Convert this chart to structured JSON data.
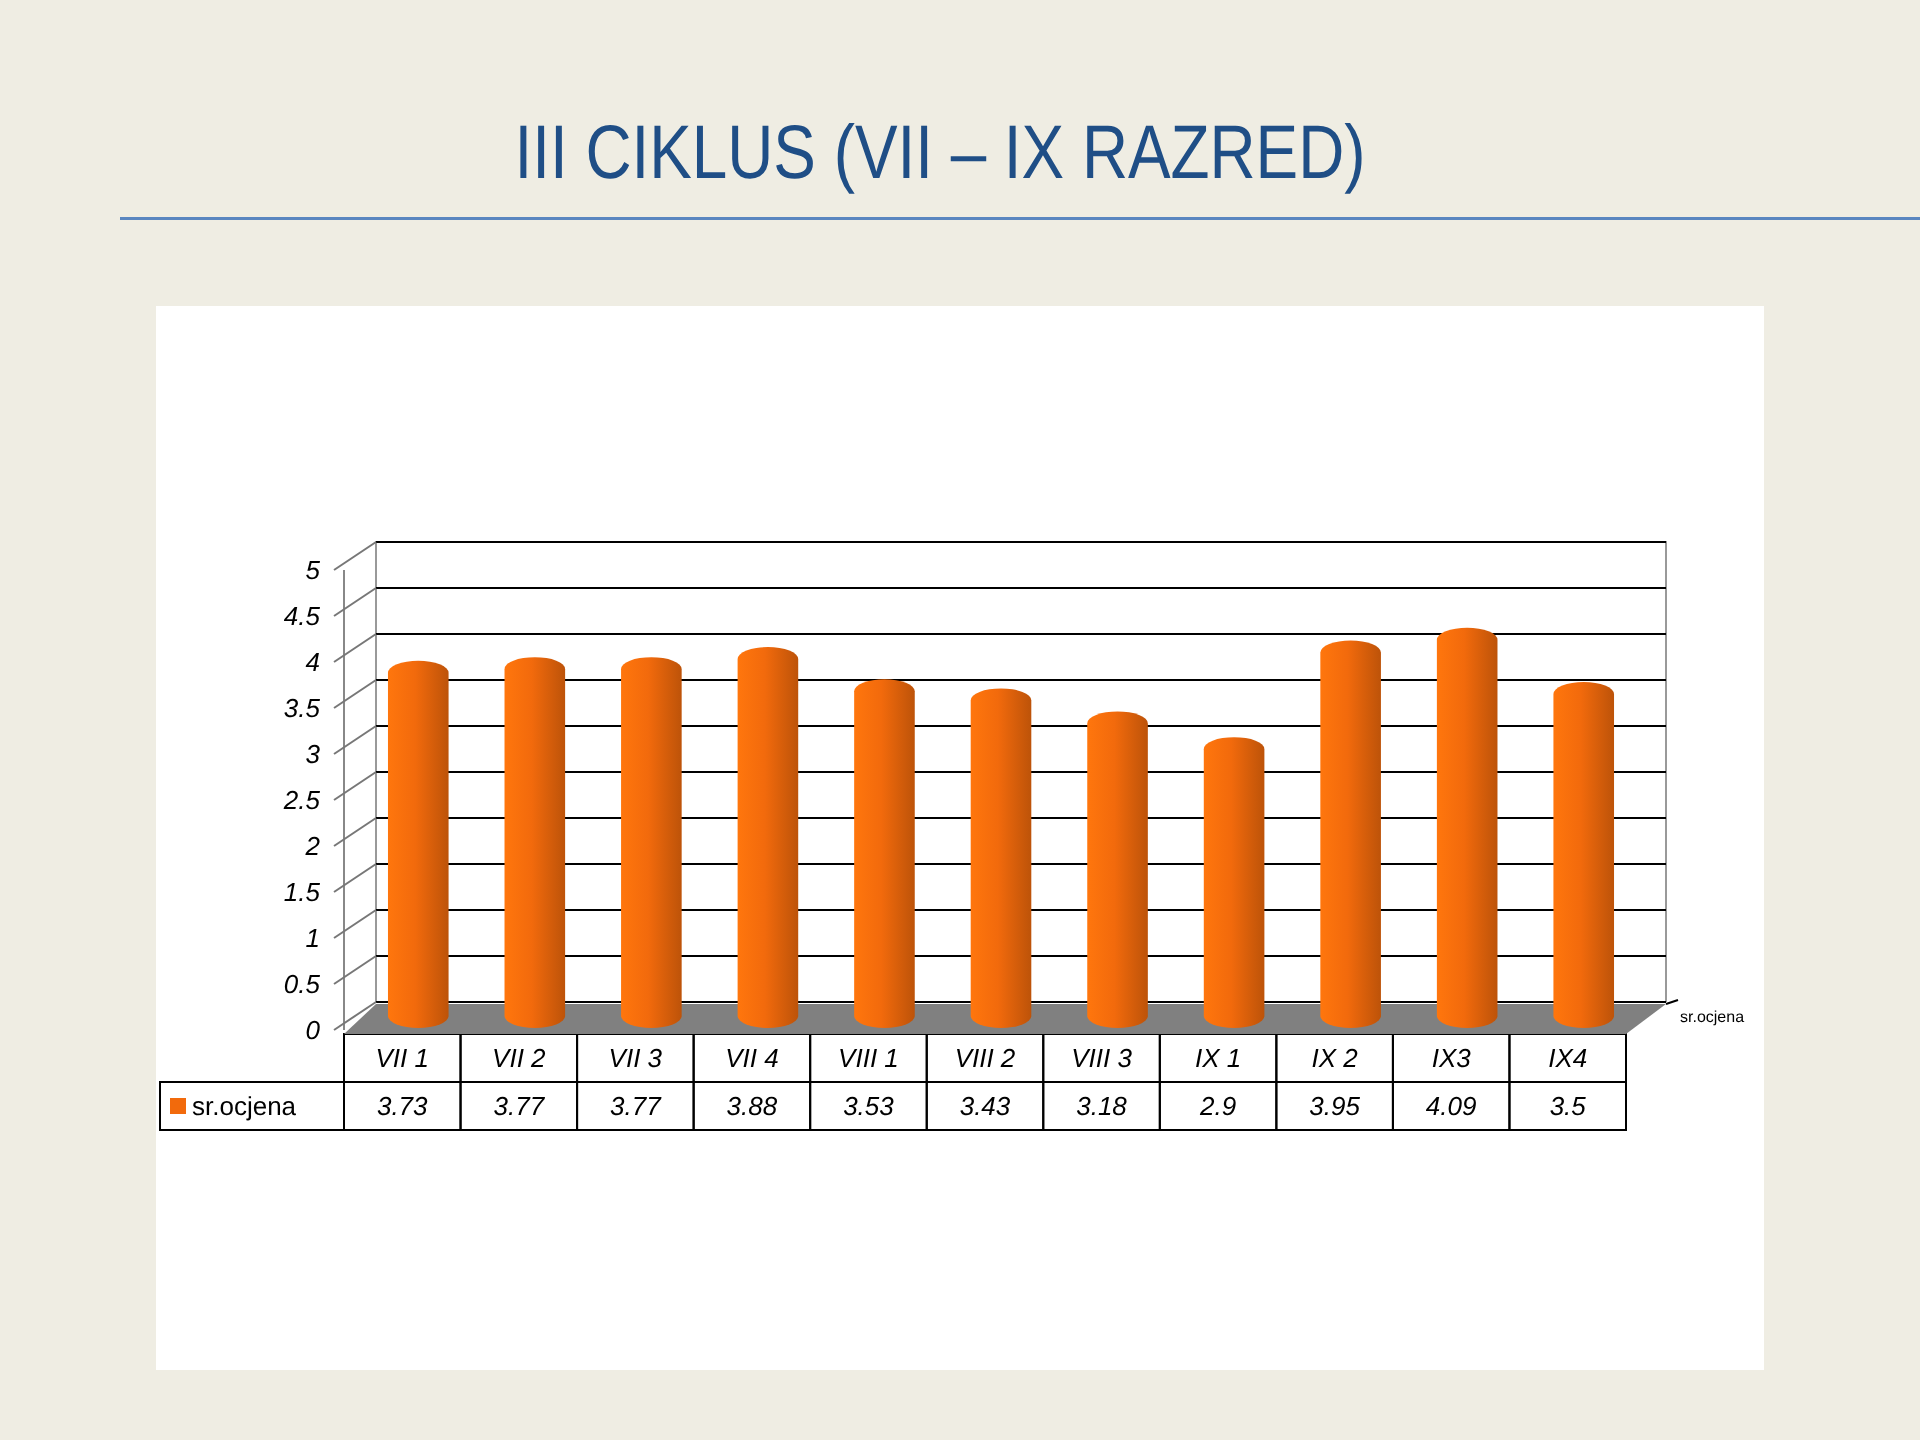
{
  "chart_data": {
    "type": "bar",
    "title": "III CIKLUS (VII – IX RAZRED)",
    "categories": [
      "VII 1",
      "VII 2",
      "VII 3",
      "VII 4",
      "VIII 1",
      "VIII 2",
      "VIII 3",
      "IX 1",
      "IX 2",
      "IX3",
      "IX4"
    ],
    "series": [
      {
        "name": "sr.ocjena",
        "color": "#f26a0c",
        "values": [
          3.73,
          3.77,
          3.77,
          3.88,
          3.53,
          3.43,
          3.18,
          2.9,
          3.95,
          4.09,
          3.5
        ]
      }
    ],
    "ylim": [
      0,
      5
    ],
    "yticks": [
      0,
      0.5,
      1,
      1.5,
      2,
      2.5,
      3,
      3.5,
      4,
      4.5,
      5
    ],
    "grid": "y",
    "legend": "bottom left",
    "data_labels": true
  }
}
